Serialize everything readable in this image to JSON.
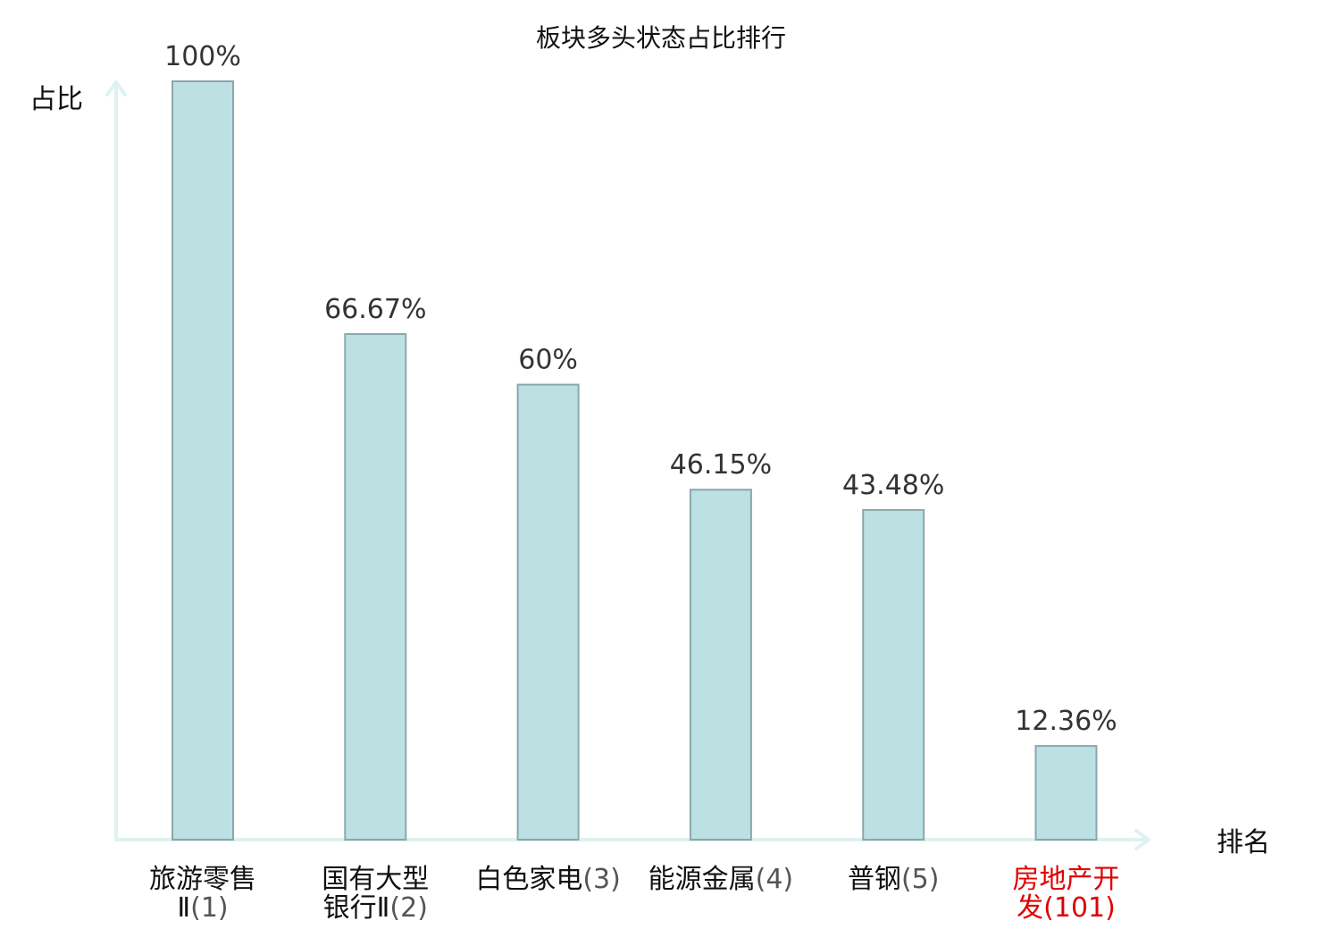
{
  "chart_data": {
    "type": "bar",
    "title": "板块多头状态占比排行",
    "ylabel": "占比",
    "xlabel": "排名",
    "ylim": [
      0,
      100
    ],
    "grid": false,
    "legend": "none",
    "categories": [
      {
        "name_lines": [
          "旅游零售",
          "Ⅱ"
        ],
        "rank": "(1)",
        "highlight": false
      },
      {
        "name_lines": [
          "国有大型",
          "银行Ⅱ"
        ],
        "rank": "(2)",
        "highlight": false
      },
      {
        "name_lines": [
          "白色家电"
        ],
        "rank": "(3)",
        "highlight": false
      },
      {
        "name_lines": [
          "能源金属"
        ],
        "rank": "(4)",
        "highlight": false
      },
      {
        "name_lines": [
          "普钢"
        ],
        "rank": "(5)",
        "highlight": false
      },
      {
        "name_lines": [
          "房地产开",
          "发"
        ],
        "rank": "(101)",
        "highlight": true
      }
    ],
    "values": [
      100,
      66.67,
      60,
      46.15,
      43.48,
      12.36
    ],
    "value_labels": [
      "100%",
      "66.67%",
      "60%",
      "46.15%",
      "43.48%",
      "12.36%"
    ]
  },
  "colors": {
    "bar_fill": "#bde0e3",
    "bar_stroke": "#8aa8ab",
    "axis": "#dff2ef",
    "highlight": "#e00000"
  }
}
